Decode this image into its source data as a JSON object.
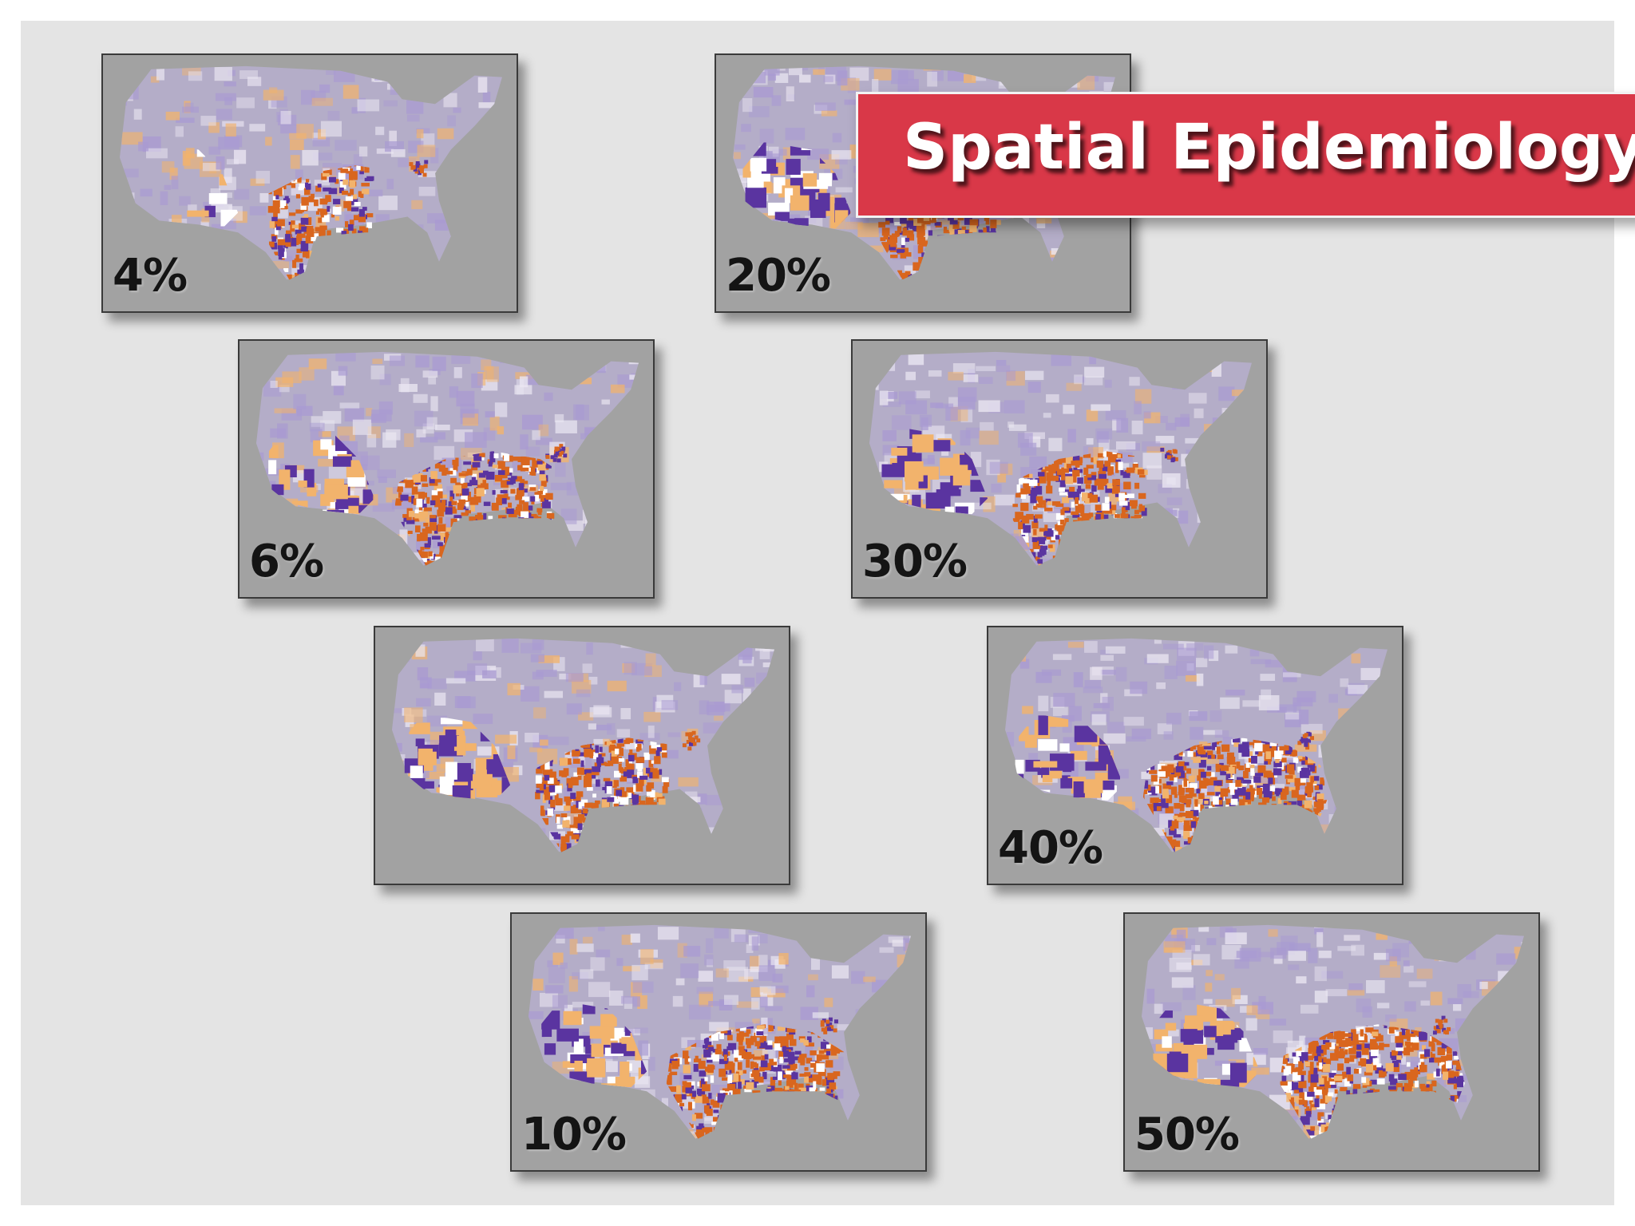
{
  "title": "Spatial Epidemiology",
  "colors": {
    "slide_bg": "#e4e4e4",
    "panel_bg": "#a2a2a2",
    "banner": "#d93848",
    "lavender": "#a99ad2",
    "purple": "#5a34a0",
    "orange": "#d9661e",
    "light_orange": "#f2b36c"
  },
  "panels": [
    {
      "label": "4%",
      "south_coverage": 0.35,
      "west_coverage": 0.15
    },
    {
      "label": "6%",
      "south_coverage": 0.7,
      "west_coverage": 0.8
    },
    {
      "label": "",
      "south_coverage": 0.55,
      "west_coverage": 0.8
    },
    {
      "label": "10%",
      "south_coverage": 0.85,
      "west_coverage": 0.85
    },
    {
      "label": "20%",
      "south_coverage": 0.45,
      "west_coverage": 0.9
    },
    {
      "label": "30%",
      "south_coverage": 0.55,
      "west_coverage": 0.85
    },
    {
      "label": "40%",
      "south_coverage": 0.9,
      "west_coverage": 0.85
    },
    {
      "label": "50%",
      "south_coverage": 1.0,
      "west_coverage": 0.85
    }
  ]
}
